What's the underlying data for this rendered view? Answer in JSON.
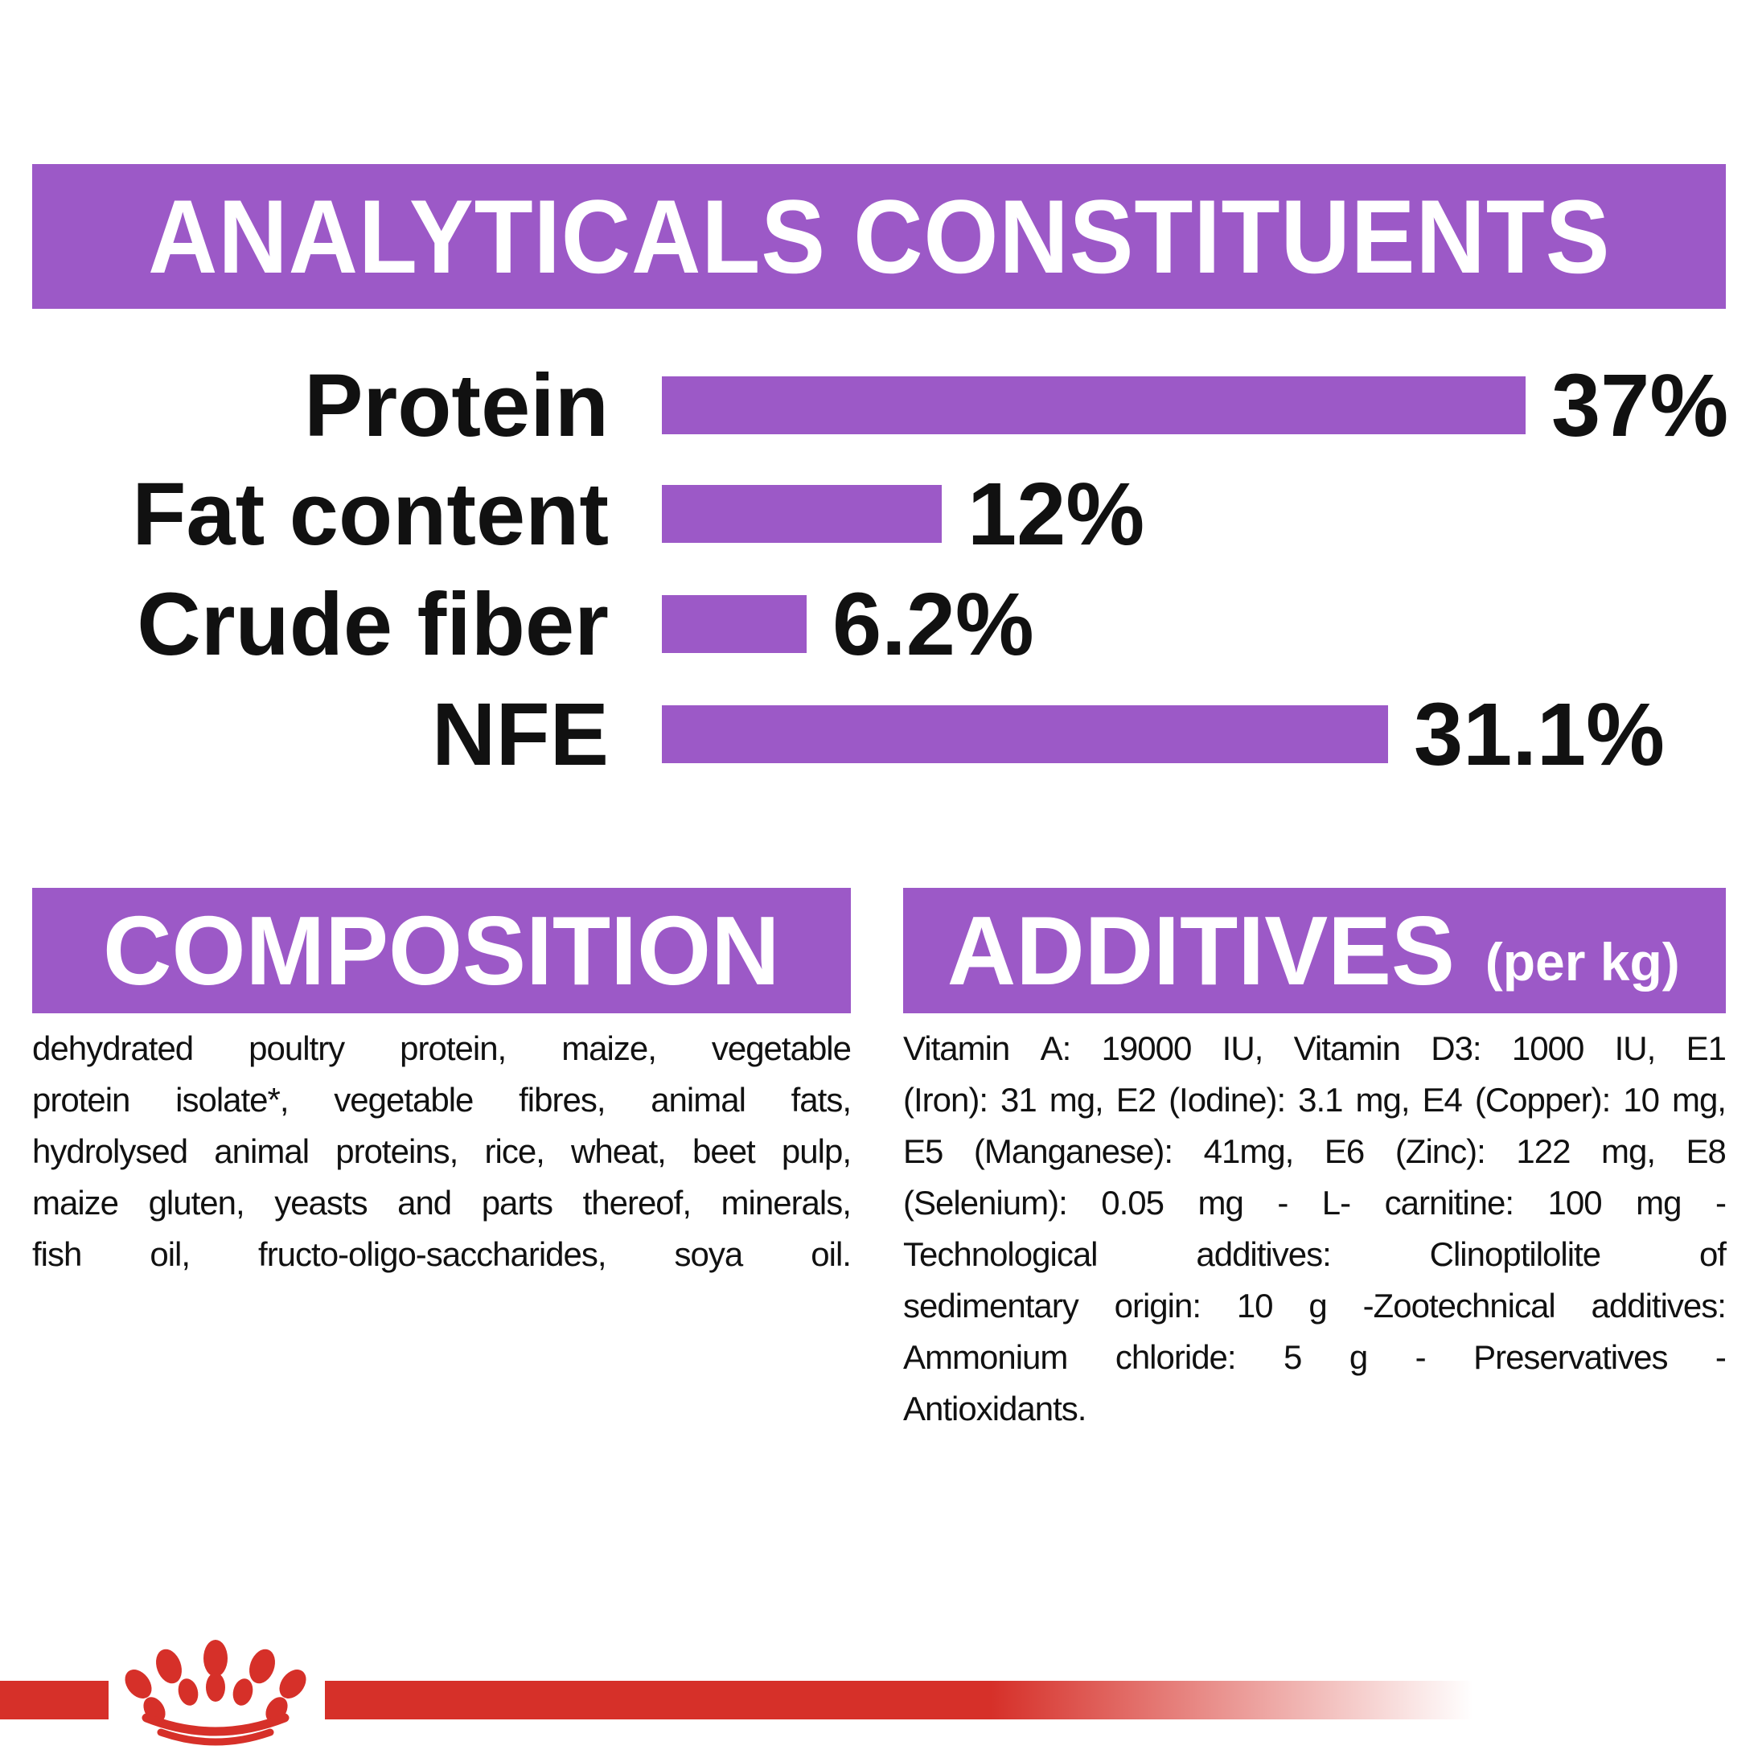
{
  "colors": {
    "purple": "#9C59C7",
    "red": "#D63029",
    "text": "#111111",
    "white": "#ffffff"
  },
  "header": {
    "title": "ANALYTICALS CONSTITUENTS"
  },
  "chart_data": {
    "type": "bar",
    "orientation": "horizontal",
    "title": "ANALYTICALS CONSTITUENTS",
    "categories": [
      "Protein",
      "Fat content",
      "Crude fiber",
      "NFE"
    ],
    "values": [
      37,
      12,
      6.2,
      31.1
    ],
    "value_labels": [
      "37%",
      "12%",
      "6.2%",
      "31.1%"
    ],
    "unit": "%",
    "xlim": [
      0,
      37
    ],
    "grid": false,
    "bar_color": "#9C59C7",
    "label_color": "#111111"
  },
  "composition": {
    "title": "COMPOSITION",
    "justify_last_line": true,
    "lines": [
      "dehydrated poultry protein, maize, vegetable",
      "protein isolate*, vegetable fibres, animal fats,",
      "hydrolysed animal proteins, rice, wheat, beet pulp,",
      "maize gluten, yeasts and parts thereof, minerals,",
      "fish oil, fructo-oligo-saccharides, soya oil."
    ]
  },
  "additives": {
    "title": "ADDITIVES",
    "title_suffix": "(per kg)",
    "justify_last_line": false,
    "lines": [
      "Vitamin A: 19000 IU, Vitamin D3: 1000 IU, E1",
      "(Iron): 31 mg, E2 (Iodine): 3.1 mg, E4 (Copper): 10 mg,",
      "E5 (Manganese): 41mg, E6 (Zinc): 122 mg, E8",
      "(Selenium): 0.05 mg - L- carnitine: 100 mg -",
      "Technological additives: Clinoptilolite of",
      "sedimentary origin: 10 g -Zootechnical additives:",
      "Ammonium chloride: 5 g - Preservatives -",
      "Antioxidants."
    ]
  },
  "footer": {
    "logo": "royal-canin-crown"
  }
}
